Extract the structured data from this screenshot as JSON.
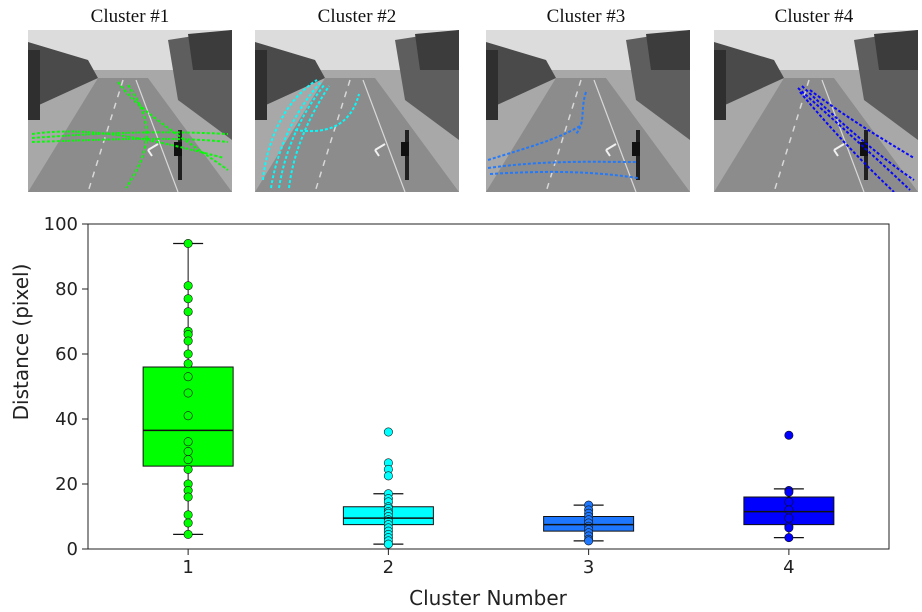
{
  "panels": [
    {
      "title": "Cluster #1",
      "color": "#00ff00"
    },
    {
      "title": "Cluster #2",
      "color": "#00ffff"
    },
    {
      "title": "Cluster #3",
      "color": "#1e78ff"
    },
    {
      "title": "Cluster #4",
      "color": "#0000ff"
    }
  ],
  "chart_data": {
    "type": "box",
    "xlabel": "Cluster Number",
    "ylabel": "Distance (pixel)",
    "ylim": [
      0,
      100
    ],
    "yticks": [
      0,
      20,
      40,
      60,
      80,
      100
    ],
    "categories": [
      "1",
      "2",
      "3",
      "4"
    ],
    "grid": false,
    "boxes": [
      {
        "category": "1",
        "color": "#00ff00",
        "min": 4.5,
        "q1": 25.5,
        "median": 36.5,
        "q3": 56.0,
        "max": 94.0,
        "points": [
          94.0,
          81.0,
          77.0,
          73.0,
          67.0,
          66.0,
          64.0,
          60.0,
          57.0,
          53.0,
          48.0,
          41.0,
          33.0,
          30.0,
          27.5,
          24.5,
          20.0,
          18.0,
          16.0,
          10.5,
          8.0,
          4.5
        ]
      },
      {
        "category": "2",
        "color": "#00ffff",
        "min": 1.5,
        "q1": 7.5,
        "median": 9.5,
        "q3": 13.0,
        "max": 17.0,
        "points": [
          36.0,
          26.5,
          24.5,
          22.5,
          17.0,
          15.5,
          14.5,
          13.0,
          12.5,
          11.5,
          11.0,
          10.0,
          9.0,
          8.5,
          7.5,
          6.5,
          5.5,
          4.5,
          3.5,
          2.5,
          1.5
        ]
      },
      {
        "category": "3",
        "color": "#1e78ff",
        "min": 2.5,
        "q1": 5.5,
        "median": 7.5,
        "q3": 10.0,
        "max": 13.5,
        "points": [
          13.5,
          12.0,
          11.0,
          10.0,
          9.0,
          8.0,
          7.0,
          6.0,
          5.0,
          4.0,
          3.0,
          2.5
        ]
      },
      {
        "category": "4",
        "color": "#0000ff",
        "min": 3.5,
        "q1": 7.5,
        "median": 11.5,
        "q3": 16.0,
        "max": 18.5,
        "points": [
          35.0,
          18.0,
          17.5,
          14.5,
          12.0,
          9.5,
          7.0,
          6.5,
          3.5
        ]
      }
    ]
  }
}
